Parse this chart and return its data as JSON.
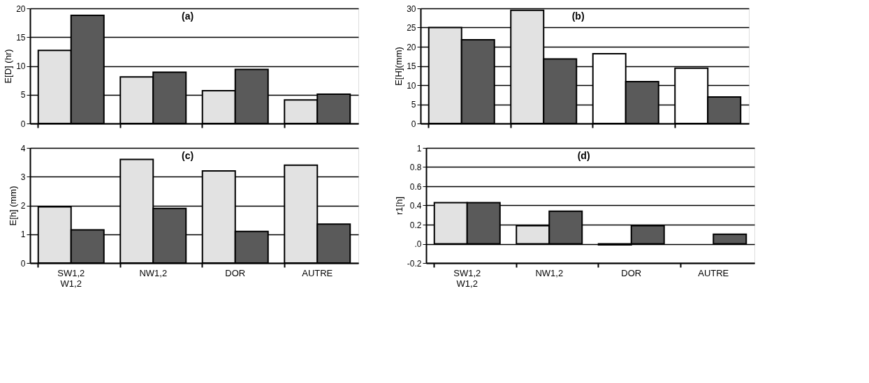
{
  "chart_data": [
    {
      "type": "bar",
      "title": "(a)",
      "ylabel": "E[D] (hr)",
      "categories": [
        null,
        null,
        null,
        null
      ],
      "tick_labels": "y",
      "grid": "y",
      "ylim": [
        0,
        20
      ],
      "yticks": [
        0,
        5,
        10,
        15,
        20
      ],
      "series": [
        {
          "color": "#e2e2e2",
          "values": [
            12.7,
            8.1,
            5.7,
            4.1
          ]
        },
        {
          "color": "#5a5a5a",
          "values": [
            18.8,
            8.9,
            9.4,
            5.1
          ]
        }
      ]
    },
    {
      "type": "bar",
      "title": "(b)",
      "ylabel": "E[H](mm)",
      "categories": [
        null,
        null,
        null,
        null
      ],
      "tick_labels": "y",
      "grid": "y",
      "ylim": [
        0,
        30
      ],
      "yticks": [
        0,
        5,
        10,
        15,
        20,
        25,
        30
      ],
      "series": [
        {
          "colors": [
            "#e2e2e2",
            "#e2e2e2",
            "#ffffff",
            "#ffffff"
          ],
          "values": [
            25,
            29.5,
            18.2,
            14.4
          ]
        },
        {
          "color": "#5a5a5a",
          "values": [
            21.8,
            16.8,
            10.9,
            6.9
          ]
        }
      ]
    },
    {
      "type": "bar",
      "title": "(c)",
      "ylabel": "E[h] (mm)",
      "categories": [
        "SW1,2 W1,2",
        "NW1,2",
        "DOR",
        "AUTRE"
      ],
      "grid": "y",
      "ylim": [
        0,
        4
      ],
      "yticks": [
        0,
        1,
        2,
        3,
        4
      ],
      "series": [
        {
          "color": "#e2e2e2",
          "values": [
            1.95,
            3.6,
            3.2,
            3.4
          ]
        },
        {
          "color": "#5a5a5a",
          "values": [
            1.15,
            1.9,
            1.1,
            1.35
          ]
        }
      ]
    },
    {
      "type": "bar",
      "title": "(d)",
      "ylabel": "r1[h]",
      "categories": [
        "SW1,2 W1,2",
        "NW1,2",
        "DOR",
        "AUTRE"
      ],
      "grid": "y",
      "ylim": [
        -0.2,
        1
      ],
      "yticks": [
        -0.2,
        {
          "value": 0,
          "label": ".0"
        },
        0.2,
        0.4,
        0.6,
        0.8,
        1
      ],
      "series": [
        {
          "color": "#e2e2e2",
          "values": [
            0.43,
            0.19,
            -0.01,
            null
          ]
        },
        {
          "color": "#5a5a5a",
          "values": [
            0.43,
            0.34,
            0.19,
            0.1
          ]
        }
      ]
    }
  ]
}
